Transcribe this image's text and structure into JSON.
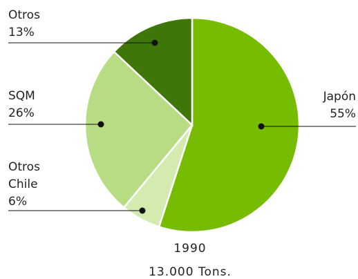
{
  "chart_data": {
    "type": "pie",
    "categories": [
      "Japón",
      "Otros Chile",
      "SQM",
      "Otros"
    ],
    "values": [
      55,
      6,
      26,
      13
    ],
    "value_labels": [
      "55%",
      "6%",
      "26%",
      "13%"
    ],
    "colors": [
      "#76bc00",
      "#d4ebb0",
      "#b8dc84",
      "#3f760a"
    ],
    "subtitle": "1990",
    "caption": "13.000 Tons."
  }
}
